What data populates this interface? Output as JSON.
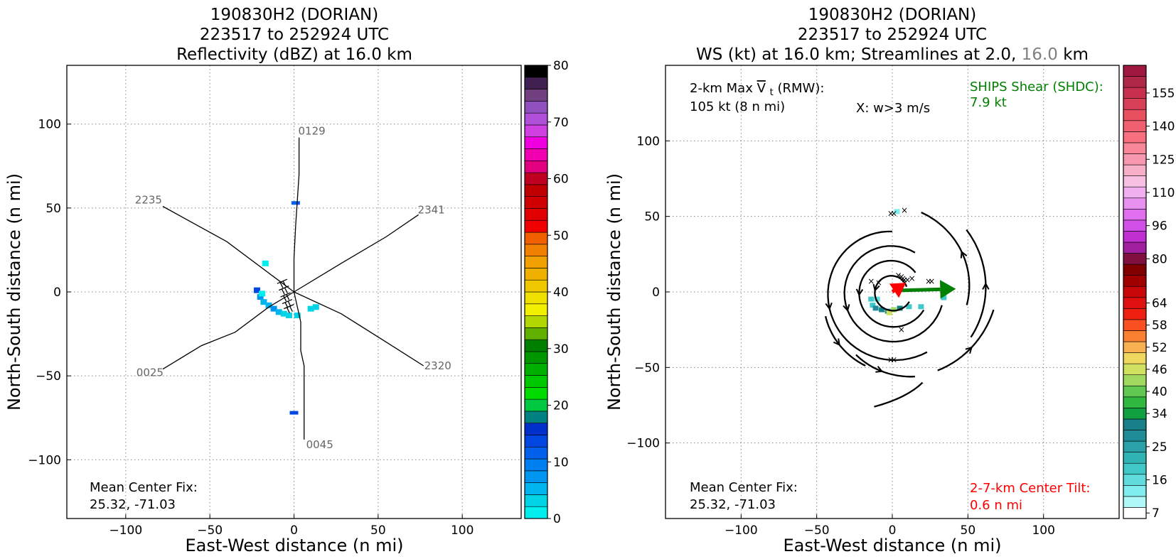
{
  "chart_data": [
    {
      "type": "heatmap",
      "title": [
        "190830H2 (DORIAN)",
        "223517 to 252924 UTC",
        "Reflectivity (dBZ) at 16.0 km"
      ],
      "xlabel": "East-West distance (n mi)",
      "ylabel": "North-South distance (n mi)",
      "xlim": [
        -135,
        135
      ],
      "ylim": [
        -135,
        135
      ],
      "xticks": [
        -100,
        -50,
        0,
        50,
        100
      ],
      "yticks": [
        -100,
        -50,
        0,
        50,
        100
      ],
      "grid": true,
      "colorbar": {
        "label_values": [
          0,
          10,
          20,
          30,
          40,
          50,
          60,
          70,
          80
        ],
        "colors": [
          "#00eeee",
          "#00d4e6",
          "#00b4ee",
          "#0096f0",
          "#0080f0",
          "#0060ec",
          "#0046e0",
          "#0030cc",
          "#008080",
          "#00c840",
          "#00dc00",
          "#00c800",
          "#00b000",
          "#009600",
          "#008000",
          "#60b000",
          "#b0d800",
          "#f0f000",
          "#f0e000",
          "#f0c800",
          "#f0b000",
          "#f0a000",
          "#f08000",
          "#f06000",
          "#f00000",
          "#e00000",
          "#d00000",
          "#c00000",
          "#c00020",
          "#e00080",
          "#f000b0",
          "#f000e0",
          "#d040e0",
          "#b050d8",
          "#9050c0",
          "#704080",
          "#402050",
          "#000000"
        ]
      },
      "tracks": [
        {
          "label": "2235",
          "points": [
            [
              -78,
              51
            ],
            [
              -40,
              30
            ],
            [
              -12,
              9
            ],
            [
              0,
              0
            ]
          ]
        },
        {
          "label": "2341",
          "points": [
            [
              0,
              0
            ],
            [
              28,
              17
            ],
            [
              55,
              33
            ],
            [
              74,
              46
            ]
          ]
        },
        {
          "label": "2320",
          "points": [
            [
              0,
              0
            ],
            [
              28,
              -13
            ],
            [
              55,
              -30
            ],
            [
              77,
              -44
            ]
          ]
        },
        {
          "label": "0025",
          "points": [
            [
              -78,
              -46
            ],
            [
              -55,
              -32
            ],
            [
              -35,
              -24
            ],
            [
              -15,
              -9
            ],
            [
              0,
              0
            ]
          ]
        },
        {
          "label": "0129",
          "points": [
            [
              3,
              92
            ],
            [
              3,
              70
            ],
            [
              1,
              40
            ],
            [
              0,
              20
            ],
            [
              0,
              0
            ]
          ]
        },
        {
          "label": "0045",
          "points": [
            [
              0,
              0
            ],
            [
              4,
              -18
            ],
            [
              4,
              -35
            ],
            [
              6,
              -44
            ],
            [
              6,
              -88
            ]
          ]
        }
      ],
      "echo_cells": [
        {
          "x": -22,
          "y": 1,
          "w": 0,
          "h": 0,
          "dbz": 13
        },
        {
          "x": -20,
          "y": -3,
          "dbz": 7
        },
        {
          "x": -18,
          "y": -6,
          "dbz": 5
        },
        {
          "x": -15,
          "y": -8,
          "dbz": 6
        },
        {
          "x": -12,
          "y": -10,
          "dbz": 7
        },
        {
          "x": -9,
          "y": -12,
          "dbz": 5
        },
        {
          "x": -6,
          "y": -13,
          "dbz": 4
        },
        {
          "x": -3,
          "y": -14,
          "dbz": 3
        },
        {
          "x": 2,
          "y": -14,
          "dbz": 4
        },
        {
          "x": 10,
          "y": -10,
          "dbz": 3
        },
        {
          "x": 13,
          "y": -9,
          "dbz": 4
        },
        {
          "x": -17,
          "y": 17,
          "dbz": 2
        },
        {
          "x": -19,
          "y": -1,
          "dbz": 2
        },
        {
          "x": 1,
          "y": 53,
          "dbz": 12
        },
        {
          "x": 0,
          "y": -72,
          "dbz": 13
        }
      ],
      "annotation": [
        "Mean Center Fix:",
        "25.32, -71.03"
      ]
    },
    {
      "type": "heatmap",
      "title": [
        "190830H2 (DORIAN)",
        "223517 to 252924 UTC",
        "WS (kt) at 16.0 km; Streamlines at 2.0,",
        "16.0",
        "km"
      ],
      "xlabel": "East-West distance (n mi)",
      "ylabel": "North-South distance (n mi)",
      "xlim": [
        -150,
        150
      ],
      "ylim": [
        -150,
        150
      ],
      "xticks": [
        -100,
        -50,
        0,
        50,
        100
      ],
      "yticks": [
        -100,
        -50,
        0,
        50,
        100
      ],
      "grid": true,
      "colorbar": {
        "label_values": [
          7,
          16,
          25,
          34,
          40,
          46,
          52,
          58,
          64,
          80,
          96,
          110,
          125,
          140,
          155
        ],
        "colors": [
          "#ffffff",
          "#b0f8f8",
          "#80eeee",
          "#60dcdc",
          "#40c8c8",
          "#30b4b4",
          "#2aa0a8",
          "#208c98",
          "#188088",
          "#10a040",
          "#30b840",
          "#60c850",
          "#a0d860",
          "#d0e060",
          "#f0d860",
          "#f8b050",
          "#f88030",
          "#f85020",
          "#f02010",
          "#e01010",
          "#c80808",
          "#a00000",
          "#800000",
          "#801040",
          "#a020a0",
          "#c030d0",
          "#d050e8",
          "#e070f0",
          "#e890f0",
          "#f0b0f0",
          "#f8c0e0",
          "#f8b0c8",
          "#f898b0",
          "#f88898",
          "#f87080",
          "#f06070",
          "#e85060",
          "#d84058",
          "#c83050",
          "#b02848",
          "#a01840"
        ]
      },
      "rmw_note": [
        "2-km Max",
        "V",
        "t",
        " (RMW):",
        "105 kt (8 n mi)"
      ],
      "w_note": "X: w>3 m/s",
      "shear_note": [
        "SHIPS Shear (SHDC):",
        "7.9 kt"
      ],
      "tilt_note": [
        "2-7-km Center Tilt:",
        "0.6 n mi"
      ],
      "shear_vector": {
        "x0": 5,
        "y0": 1,
        "x1": 42,
        "y1": 2,
        "color": "#008000"
      },
      "tilt_vector": {
        "x0": 0,
        "y0": 0,
        "x1": 9,
        "y1": 6,
        "color": "#ff0000"
      },
      "updraft_marks": [
        [
          -1,
          52
        ],
        [
          1,
          52
        ],
        [
          8,
          54
        ],
        [
          4,
          11
        ],
        [
          6,
          10
        ],
        [
          7,
          9
        ],
        [
          8,
          8
        ],
        [
          10,
          8
        ],
        [
          13,
          9
        ],
        [
          26,
          7
        ],
        [
          24,
          7
        ],
        [
          -1,
          -45
        ],
        [
          1,
          -45
        ],
        [
          -9,
          6
        ],
        [
          -14,
          7
        ],
        [
          6,
          -25
        ]
      ],
      "ws_cells": [
        {
          "x": -13,
          "y": -9,
          "kt": 25
        },
        {
          "x": -11,
          "y": -11,
          "kt": 34
        },
        {
          "x": -7,
          "y": -12,
          "kt": 40
        },
        {
          "x": -3,
          "y": -13,
          "kt": 34
        },
        {
          "x": 1,
          "y": -12,
          "kt": 52
        },
        {
          "x": 5,
          "y": -11,
          "kt": 40
        },
        {
          "x": 11,
          "y": -10,
          "kt": 25
        },
        {
          "x": -2,
          "y": -14,
          "kt": 58
        },
        {
          "x": 19,
          "y": -10,
          "kt": 25
        },
        {
          "x": -10,
          "y": -5,
          "kt": 20
        },
        {
          "x": -14,
          "y": -5,
          "kt": 25
        },
        {
          "x": 34,
          "y": -4,
          "kt": 25
        },
        {
          "x": 3,
          "y": 53,
          "kt": 16
        }
      ],
      "annotation": [
        "Mean Center Fix:",
        "25.32, -71.03"
      ]
    }
  ]
}
